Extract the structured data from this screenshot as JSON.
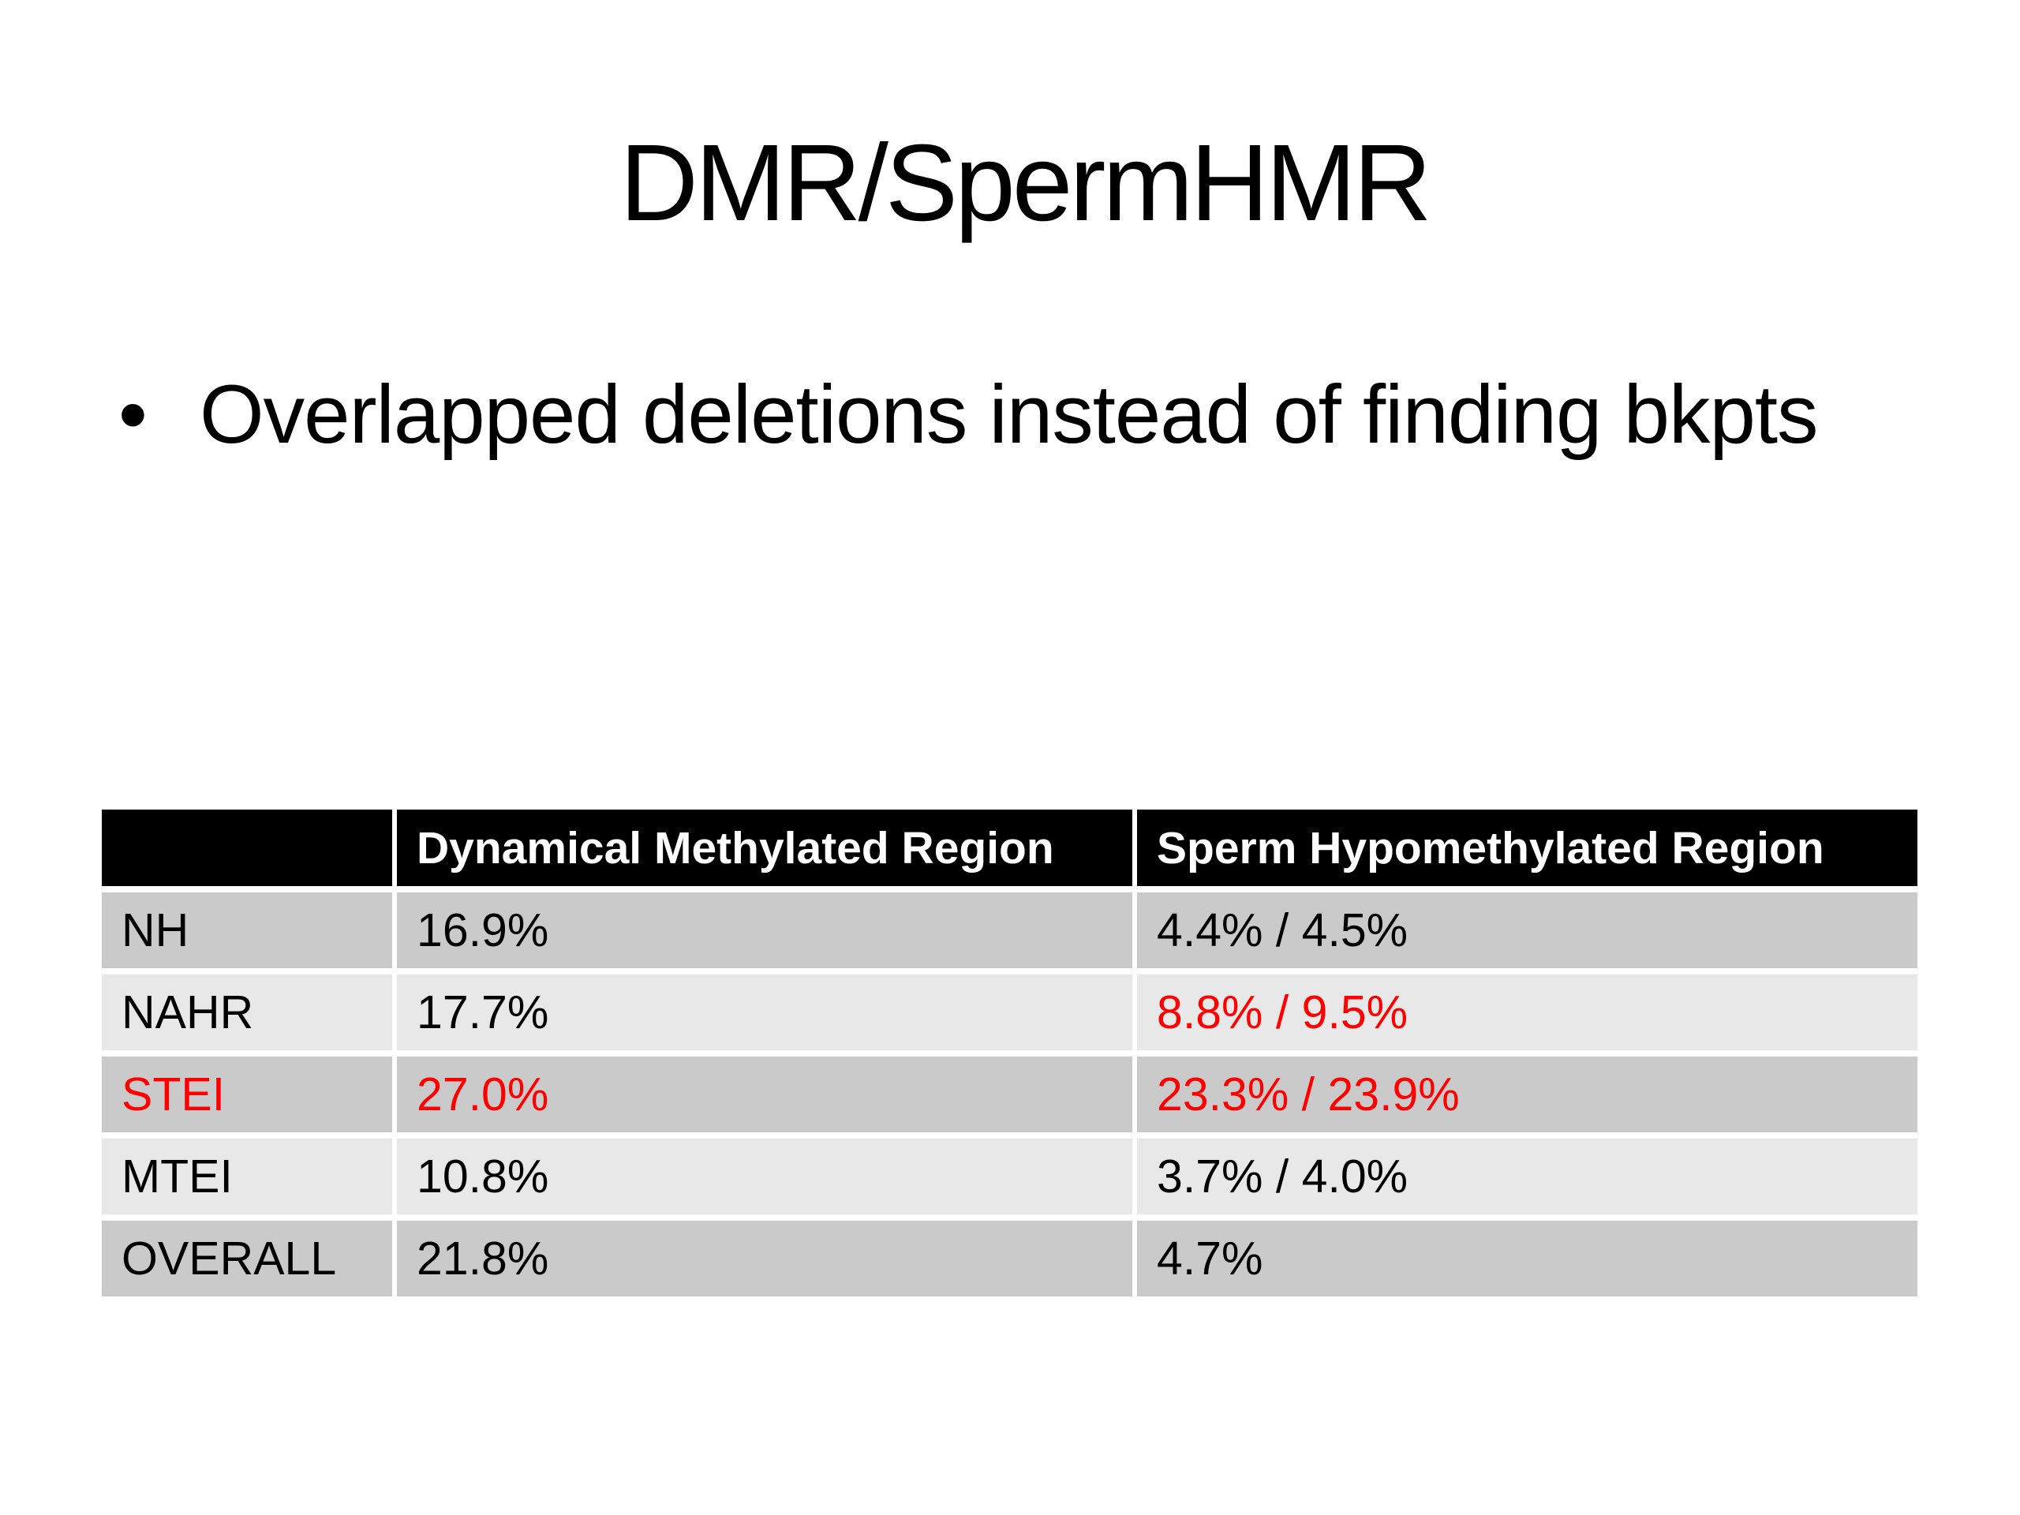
{
  "slide": {
    "title": "DMR/SpermHMR",
    "bullet": {
      "glyph": "•",
      "text": "Overlapped deletions instead of finding bkpts"
    }
  },
  "table": {
    "columns": [
      "",
      "Dynamical Methylated Region",
      "Sperm Hypomethylated Region"
    ],
    "rows": [
      {
        "label": "NH",
        "dmr": "16.9%",
        "hmr": "4.4% / 4.5%",
        "red_label": false,
        "red_dmr": false,
        "red_hmr": false
      },
      {
        "label": "NAHR",
        "dmr": "17.7%",
        "hmr": "8.8% / 9.5%",
        "red_label": false,
        "red_dmr": false,
        "red_hmr": true
      },
      {
        "label": "STEI",
        "dmr": "27.0%",
        "hmr": "23.3% / 23.9%",
        "red_label": true,
        "red_dmr": true,
        "red_hmr": true
      },
      {
        "label": "MTEI",
        "dmr": "10.8%",
        "hmr": "3.7% / 4.0%",
        "red_label": false,
        "red_dmr": false,
        "red_hmr": false
      },
      {
        "label": "OVERALL",
        "dmr": "21.8%",
        "hmr": "4.7%",
        "red_label": false,
        "red_dmr": false,
        "red_hmr": false
      }
    ]
  },
  "colors": {
    "accent_red": "#ff0000",
    "header_bg": "#000000",
    "header_text": "#ffffff",
    "row_dark": "#cacaca",
    "row_light": "#e8e8e8",
    "body_text": "#000000"
  }
}
